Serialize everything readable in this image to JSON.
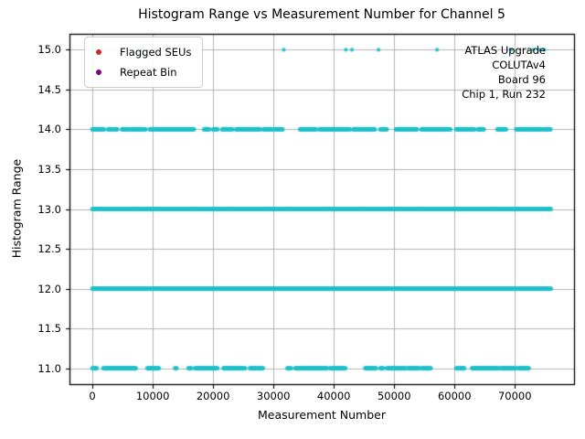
{
  "chart_data": {
    "type": "scatter",
    "title": "Histogram Range vs Measurement Number for Channel 5",
    "xlabel": "Measurement Number",
    "ylabel": "Histogram Range",
    "xlim": [
      -3800,
      79800
    ],
    "ylim": [
      10.8,
      15.2
    ],
    "xticks": [
      "0",
      "10000",
      "20000",
      "30000",
      "40000",
      "50000",
      "60000",
      "70000"
    ],
    "yticks": [
      "11.0",
      "11.5",
      "12.0",
      "12.5",
      "13.0",
      "13.5",
      "14.0",
      "14.5",
      "15.0"
    ],
    "grid": true,
    "grid_color": "#b4b4b4",
    "frame_color": "#000000",
    "legend_position": "upper-left",
    "annotation": "ATLAS Upgrade\nCOLUTAv4\nBoard 96\nChip 1, Run 232",
    "series": [
      {
        "name": "Flagged SEUs",
        "color": "#d62728",
        "points": []
      },
      {
        "name": "Repeat Bin",
        "color": "#800080",
        "points": []
      }
    ],
    "measurements": {
      "color": "#1fc0ca",
      "bands": [
        {
          "y": 15,
          "segments": [
            [
              8300,
              8300
            ],
            [
              12600,
              12600
            ],
            [
              31700,
              31700
            ],
            [
              42000,
              42000
            ],
            [
              43000,
              43000
            ],
            [
              47400,
              47400
            ],
            [
              57100,
              57100
            ],
            [
              69400,
              69400
            ],
            [
              73000,
              73000
            ],
            [
              74100,
              74100
            ],
            [
              74850,
              74850
            ]
          ]
        },
        {
          "y": 14,
          "segments": [
            [
              0,
              2000
            ],
            [
              2600,
              3300
            ],
            [
              3500,
              4100
            ],
            [
              4900,
              6100
            ],
            [
              6400,
              8800
            ],
            [
              9500,
              16900
            ],
            [
              18500,
              19400
            ],
            [
              20000,
              20800
            ],
            [
              21500,
              23200
            ],
            [
              23800,
              27800
            ],
            [
              28300,
              29900
            ],
            [
              30300,
              31500
            ],
            [
              34400,
              37100
            ],
            [
              37600,
              42700
            ],
            [
              43200,
              46900
            ],
            [
              47700,
              48800
            ],
            [
              50300,
              53800
            ],
            [
              54500,
              59400
            ],
            [
              60300,
              63300
            ],
            [
              63900,
              64900
            ],
            [
              67100,
              68600
            ],
            [
              70200,
              74400
            ],
            [
              74700,
              76000
            ]
          ]
        },
        {
          "y": 13,
          "segments": [
            [
              0,
              76000
            ]
          ]
        },
        {
          "y": 12,
          "segments": [
            [
              0,
              76000
            ]
          ]
        },
        {
          "y": 11,
          "segments": [
            [
              0,
              800
            ],
            [
              1800,
              7300
            ],
            [
              9100,
              11100
            ],
            [
              13700,
              14000
            ],
            [
              15900,
              16400
            ],
            [
              17000,
              20800
            ],
            [
              21700,
              25300
            ],
            [
              26100,
              28300
            ],
            [
              32300,
              33000
            ],
            [
              33600,
              38900
            ],
            [
              39400,
              42000
            ],
            [
              45200,
              47000
            ],
            [
              47700,
              48200
            ],
            [
              48800,
              52000
            ],
            [
              52300,
              54100
            ],
            [
              54500,
              56100
            ],
            [
              60300,
              61700
            ],
            [
              62900,
              67400
            ],
            [
              67700,
              70200
            ],
            [
              70500,
              72300
            ]
          ]
        }
      ]
    }
  }
}
